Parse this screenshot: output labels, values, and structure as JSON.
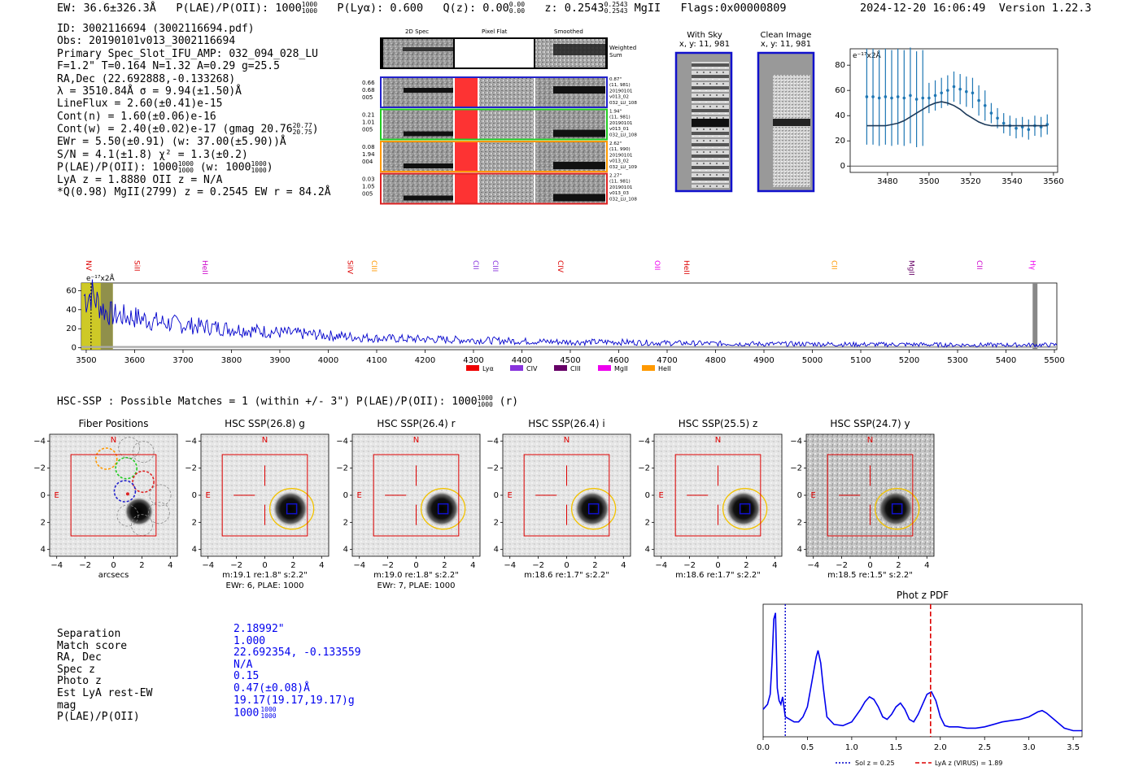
{
  "header": {
    "ew": "EW: 36.6±326.3Å",
    "plae": "P(LAE)/P(OII): 1000",
    "plae_sup": "1000",
    "plae_sub": "1000",
    "plya": "P(Lyα): 0.600",
    "qz": "Q(z): 0.00",
    "qz_sup": "0.00",
    "qz_sub": "0.00",
    "z": "z: 0.2543",
    "z_sup": "0.2543",
    "z_sub": "0.2543",
    "mgii": "MgII",
    "flags": "Flags:0x00000809",
    "timestamp": "2024-12-20 16:06:49",
    "version": "Version 1.22.3"
  },
  "info": {
    "id": "ID: 3002116694 (3002116694.pdf)",
    "obs": "Obs: 20190101v013_3002116694",
    "primary": "Primary Spec_Slot_IFU_AMP: 032_094_028_LU",
    "fiber": "F=1.2\"  T=0.164  N=1.32  A=0.29  g=25.5",
    "radec": "RA,Dec (22.692888,-0.133268)",
    "lambda": "λ = 3510.84Å  σ = 9.94(±1.50)Å",
    "lineflux": "LineFlux = 2.60(±0.41)e-15",
    "cont_n": "Cont(n) = 1.60(±0.06)e-16",
    "cont_w": "Cont(w) = 2.40(±0.02)e-17 (gmag 20.76",
    "cont_w_sup": "20.77",
    "cont_w_sub": "20.75",
    "cont_w_close": ")",
    "ewr": "EWr = 5.50(±0.91) (w: 37.00(±5.90))Å",
    "sn": "S/N = 4.1(±1.8)  χ² = 1.3(±0.2)",
    "plae_line": "P(LAE)/P(OII): 1000",
    "plae_line_sup": "1000",
    "plae_line_sub": "1000",
    "plae_line_w": "(w: 1000",
    "plae_line_w_sup": "1000",
    "plae_line_w_sub": "1000",
    "plae_line_close": ")",
    "lya": "LyA z = 1.8880  OII z = N/A",
    "q": "*Q(0.98) MgII(2799) z = 0.2545  EW r = 84.2Å"
  },
  "cutouts": {
    "col_titles": [
      "2D Spec",
      "Pixel Flat",
      "Smoothed"
    ],
    "weighted_sum": [
      "Weighted",
      "Sum"
    ],
    "rows": [
      {
        "left": [
          "0.66",
          "0.68",
          "005"
        ],
        "right": [
          "0.87\"",
          "(11, 981)",
          "20190101",
          "v013_02",
          "032_LU_108"
        ],
        "color": "#2222cc"
      },
      {
        "left": [
          "0.21",
          "1.01",
          "005"
        ],
        "right": [
          "1.94\"",
          "(11, 981)",
          "20190101",
          "v013_01",
          "032_LU_108"
        ],
        "color": "#22cc22"
      },
      {
        "left": [
          "0.08",
          "1.94",
          "004"
        ],
        "right": [
          "2.62\"",
          "(11, 990)",
          "20190101",
          "v013_02",
          "032_LU_109"
        ],
        "color": "#ff9900"
      },
      {
        "left": [
          "0.03",
          "1.05",
          "005"
        ],
        "right": [
          "2.27\"",
          "(11, 981)",
          "20190101",
          "v013_03",
          "032_LU_108"
        ],
        "color": "#dd2222"
      }
    ]
  },
  "sky": {
    "with_sky_title": "With Sky",
    "with_sky_sub": "x, y: 11, 981",
    "clean_title": "Clean Image",
    "clean_sub": "x, y: 11, 981"
  },
  "line_panel": {
    "ylabel": "e⁻¹⁷x2Å",
    "chart_data": {
      "type": "scatter",
      "x": [
        3470,
        3473,
        3476,
        3479,
        3482,
        3485,
        3488,
        3491,
        3494,
        3497,
        3500,
        3503,
        3506,
        3509,
        3512,
        3515,
        3518,
        3521,
        3524,
        3527,
        3530,
        3533,
        3536,
        3539,
        3542,
        3545,
        3548,
        3551,
        3554,
        3557
      ],
      "y": [
        55,
        55,
        54,
        55,
        54,
        55,
        54,
        56,
        53,
        54,
        54,
        56,
        58,
        60,
        63,
        61,
        59,
        58,
        52,
        48,
        42,
        38,
        34,
        32,
        30,
        31,
        29,
        32,
        31,
        33
      ],
      "fit": [
        32,
        32,
        32,
        32,
        33,
        34,
        36,
        39,
        42,
        45,
        48,
        50,
        51,
        50,
        48,
        45,
        41,
        38,
        35,
        33,
        32,
        32,
        32,
        32,
        32,
        32,
        32,
        32,
        32,
        32
      ],
      "xlim": [
        3462,
        3562
      ],
      "ylim": [
        -5,
        93
      ],
      "xticks": [
        3480,
        3500,
        3520,
        3540,
        3560
      ],
      "yticks": [
        0,
        20,
        40,
        60,
        80
      ],
      "color": "#1f77b4"
    }
  },
  "spectrum": {
    "ylabel": "e⁻¹⁷x2Å",
    "lines": [
      {
        "label": "NV",
        "wave": 3500,
        "color": "#dd0000"
      },
      {
        "label": "SiII",
        "wave": 3600,
        "color": "#dd0000"
      },
      {
        "label": "HeII",
        "wave": 3740,
        "color": "#cc00cc"
      },
      {
        "label": "SiIV",
        "wave": 4040,
        "color": "#dd0000"
      },
      {
        "label": "CIII",
        "wave": 4090,
        "color": "#ff9900"
      },
      {
        "label": "CII",
        "wave": 4300,
        "color": "#8833dd"
      },
      {
        "label": "CIII",
        "wave": 4340,
        "color": "#8833dd"
      },
      {
        "label": "CIV",
        "wave": 4475,
        "color": "#dd0000"
      },
      {
        "label": "OII",
        "wave": 4675,
        "color": "#ee00ee"
      },
      {
        "label": "HeII",
        "wave": 4735,
        "color": "#dd0000"
      },
      {
        "label": "CII",
        "wave": 5040,
        "color": "#ff9900"
      },
      {
        "label": "MgII",
        "wave": 5200,
        "color": "#660066"
      },
      {
        "label": "CII",
        "wave": 5340,
        "color": "#cc00cc"
      },
      {
        "label": "Hγ",
        "wave": 5450,
        "color": "#ee00ee"
      }
    ],
    "legend": [
      {
        "label": "Lyα",
        "color": "#ee0000"
      },
      {
        "label": "CIV",
        "color": "#8833dd"
      },
      {
        "label": "CIII",
        "color": "#660066"
      },
      {
        "label": "MgII",
        "color": "#ee00ee"
      },
      {
        "label": "HeII",
        "color": "#ff9900"
      }
    ],
    "chart_data": {
      "type": "line",
      "xlim": [
        3490,
        5505
      ],
      "ylim": [
        -2,
        68
      ],
      "xticks": [
        3500,
        3600,
        3700,
        3800,
        3900,
        4000,
        4100,
        4200,
        4300,
        4400,
        4500,
        4600,
        4700,
        4800,
        4900,
        5000,
        5100,
        5200,
        5300,
        5400,
        5500
      ],
      "yticks": [
        0,
        20,
        40,
        60
      ],
      "x": [
        3495,
        3500,
        3510,
        3520,
        3530,
        3540,
        3550,
        3560,
        3580,
        3600,
        3650,
        3700,
        3800,
        3900,
        4000,
        4100,
        4200,
        4300,
        4400,
        4500,
        4600,
        4700,
        4800,
        4900,
        5000,
        5100,
        5200,
        5300,
        5400,
        5460,
        5500
      ],
      "y": [
        55,
        52,
        58,
        50,
        44,
        38,
        36,
        34,
        33,
        32,
        27,
        24,
        20,
        16,
        13,
        10,
        9,
        8,
        7,
        6,
        6,
        5,
        4.5,
        4,
        4,
        3.5,
        3.5,
        3,
        3,
        3,
        3
      ],
      "color": "#0000cc"
    }
  },
  "hsc": {
    "summary": "HSC-SSP : Possible Matches = 1 (within +/- 3\")  P(LAE)/P(OII): 1000",
    "summary_sup": "1000",
    "summary_sub": "1000",
    "summary_end": "(r)",
    "panels": [
      {
        "title": "Fiber Positions",
        "cap1": "arcsecs",
        "cap2": ""
      },
      {
        "title": "HSC SSP(26.8) g",
        "cap1": "m:19.1  re:1.8\"  s:2.2\"",
        "cap2": "EWr: 6, PLAE: 1000"
      },
      {
        "title": "HSC SSP(26.4) r",
        "cap1": "m:19.0  re:1.8\"  s:2.2\"",
        "cap2": "EWr: 7, PLAE: 1000"
      },
      {
        "title": "HSC SSP(26.4) i",
        "cap1": "m:18.6  re:1.7\"  s:2.2\"",
        "cap2": ""
      },
      {
        "title": "HSC SSP(25.5) z",
        "cap1": "m:18.6  re:1.7\"  s:2.2\"",
        "cap2": ""
      },
      {
        "title": "HSC SSP(24.7) y",
        "cap1": "m:18.5  re:1.5\"  s:2.2\"",
        "cap2": ""
      }
    ],
    "north": "N",
    "east": "E",
    "ticks": [
      "−4",
      "−2",
      "0",
      "2",
      "4"
    ],
    "yticks": [
      "4",
      "2",
      "0",
      "−2",
      "−4"
    ]
  },
  "match": {
    "labels": [
      "Separation",
      "Match score",
      "RA, Dec",
      "Spec z",
      "Photo z",
      "Est LyA rest-EW",
      "mag",
      "P(LAE)/P(OII)"
    ],
    "values": [
      "2.18992\"",
      "1.000",
      "22.692354, -0.133559",
      "N/A",
      "0.15",
      "0.47(±0.08)Å",
      "19.17(19.17,19.17)g",
      "1000"
    ],
    "plae_sup": "1000",
    "plae_sub": "1000"
  },
  "photz": {
    "title": "Phot z PDF",
    "legend_sol": "Sol z = 0.25",
    "legend_lya": "LyA z (VIRUS) = 1.89",
    "sol_z": 0.25,
    "lya_z": 1.89,
    "chart_data": {
      "type": "line",
      "xlim": [
        0.0,
        3.6
      ],
      "xticks": [
        0.0,
        0.5,
        1.0,
        1.5,
        2.0,
        2.5,
        3.0,
        3.5
      ],
      "x": [
        0.0,
        0.05,
        0.08,
        0.1,
        0.12,
        0.14,
        0.16,
        0.18,
        0.2,
        0.22,
        0.25,
        0.3,
        0.35,
        0.4,
        0.45,
        0.5,
        0.55,
        0.6,
        0.62,
        0.65,
        0.68,
        0.72,
        0.8,
        0.9,
        1.0,
        1.1,
        1.15,
        1.2,
        1.25,
        1.3,
        1.35,
        1.4,
        1.45,
        1.5,
        1.55,
        1.6,
        1.65,
        1.7,
        1.75,
        1.8,
        1.85,
        1.9,
        1.95,
        2.0,
        2.05,
        2.1,
        2.2,
        2.3,
        2.4,
        2.5,
        2.6,
        2.7,
        2.8,
        2.9,
        3.0,
        3.1,
        3.15,
        3.2,
        3.3,
        3.4,
        3.5,
        3.6
      ],
      "y": [
        0.18,
        0.22,
        0.3,
        0.55,
        0.9,
        0.95,
        0.35,
        0.25,
        0.22,
        0.28,
        0.12,
        0.1,
        0.08,
        0.08,
        0.12,
        0.2,
        0.4,
        0.6,
        0.65,
        0.55,
        0.35,
        0.12,
        0.06,
        0.05,
        0.08,
        0.18,
        0.24,
        0.28,
        0.26,
        0.2,
        0.12,
        0.1,
        0.14,
        0.2,
        0.23,
        0.18,
        0.1,
        0.08,
        0.14,
        0.22,
        0.3,
        0.32,
        0.25,
        0.12,
        0.05,
        0.04,
        0.04,
        0.03,
        0.03,
        0.04,
        0.06,
        0.08,
        0.09,
        0.1,
        0.12,
        0.16,
        0.17,
        0.15,
        0.09,
        0.03,
        0.01,
        0.01
      ],
      "ylim": [
        0,
        1.0
      ]
    }
  }
}
